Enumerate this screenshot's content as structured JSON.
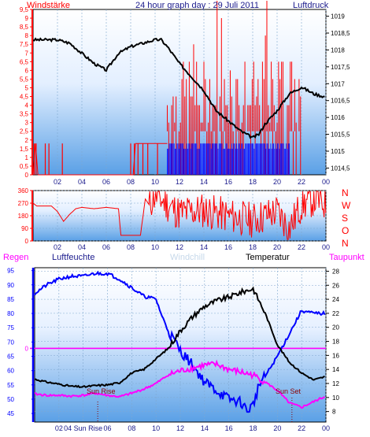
{
  "header": {
    "left_title": "Windstärke",
    "center_title": "24 hour graph day : 29 Juli 2011",
    "right_title": "Luftdruck"
  },
  "colors": {
    "wind_red": "#ff0000",
    "wind_blue": "#0000ff",
    "pressure_black": "#000000",
    "grid_bg_top": "#ffffff",
    "grid_bg_bottom": "#5aa0e6",
    "humidity_blue": "#0000ff",
    "dew_magenta": "#ff00ff",
    "axis_red": "#ff0000",
    "axis_blue": "#0000ff",
    "title_navy": "#1a1a8c"
  },
  "lower_header": {
    "rain": "Regen",
    "humidity": "Luftfeuchte",
    "windchill": "Windchill",
    "temperature": "Temperatur",
    "dewpoint": "Taupunkt"
  },
  "direction_labels": [
    "N",
    "W",
    "S",
    "O",
    "N"
  ],
  "annotations": {
    "sunrise": "Sun Rise",
    "sunset": "Sun Set",
    "sunrise_tick": "04 Sun Rise"
  },
  "chart_data": [
    {
      "type": "line",
      "name": "wind-pressure",
      "x_ticks": [
        "02",
        "04",
        "06",
        "08",
        "10",
        "12",
        "14",
        "16",
        "18",
        "20",
        "22",
        "00"
      ],
      "left_axis": {
        "ticks": [
          "0",
          "0,5",
          "1",
          "1,5",
          "2",
          "2,5",
          "3",
          "3,5",
          "4",
          "4,5",
          "5",
          "5,5",
          "6",
          "6,5",
          "7",
          "7,5",
          "8",
          "8,5",
          "9",
          "9,5"
        ],
        "range": [
          0,
          9.5
        ]
      },
      "right_axis": {
        "ticks": [
          "1014,5",
          "1015",
          "1015,5",
          "1016",
          "1016,5",
          "1017",
          "1017,5",
          "1018",
          "1018,5",
          "1019"
        ],
        "range": [
          1014.3,
          1019.2
        ]
      },
      "pressure": {
        "x": [
          0,
          1,
          2,
          3,
          4,
          5,
          6,
          7,
          8,
          9,
          10,
          10.5,
          11,
          12,
          13,
          14,
          15,
          16,
          17,
          17.5,
          18,
          18.5,
          19,
          20,
          21,
          22,
          22.5,
          23,
          24
        ],
        "y": [
          1018.3,
          1018.3,
          1018.3,
          1018.2,
          1017.9,
          1017.6,
          1017.4,
          1017.9,
          1018.1,
          1018.2,
          1018.3,
          1018.3,
          1018.1,
          1017.6,
          1017.2,
          1016.8,
          1016.2,
          1015.9,
          1015.6,
          1015.5,
          1015.4,
          1015.5,
          1015.8,
          1016.2,
          1016.7,
          1016.9,
          1016.8,
          1016.7,
          1016.6
        ]
      },
      "gust_range_hours": [
        11,
        22
      ],
      "wind_range_hours": [
        11,
        21
      ]
    },
    {
      "type": "line",
      "name": "wind-direction",
      "x_ticks": [
        "02",
        "04",
        "06",
        "08",
        "10",
        "12",
        "14",
        "16",
        "18",
        "20",
        "22",
        "00"
      ],
      "y_ticks": [
        "0",
        "90",
        "180",
        "270",
        "360"
      ],
      "ylim": [
        0,
        360
      ],
      "x": [
        0,
        0.3,
        1.5,
        2,
        2.5,
        3,
        3.5,
        4,
        5,
        6,
        7,
        7.2,
        8,
        8.8,
        9.2,
        9.5,
        10,
        11,
        12,
        14,
        16,
        18,
        20,
        21,
        22,
        23,
        24
      ],
      "y": [
        270,
        250,
        250,
        210,
        140,
        190,
        230,
        240,
        230,
        240,
        230,
        40,
        40,
        40,
        300,
        260,
        330,
        260,
        200,
        220,
        180,
        150,
        210,
        90,
        260,
        300,
        270
      ]
    },
    {
      "type": "line",
      "name": "climate",
      "x_ticks": [
        "02",
        "04",
        "06",
        "08",
        "10",
        "12",
        "14",
        "16",
        "18",
        "20",
        "22",
        "00"
      ],
      "humidity_axis": {
        "ticks": [
          "45",
          "50",
          "55",
          "60",
          "65",
          "70",
          "75",
          "80",
          "85",
          "90",
          "95"
        ],
        "range": [
          42,
          96
        ]
      },
      "temperature_axis": {
        "ticks": [
          "8",
          "10",
          "12",
          "14",
          "16",
          "18",
          "20",
          "22",
          "24",
          "26",
          "28"
        ],
        "range": [
          6.5,
          28.5
        ]
      },
      "rain_marker": "0",
      "series": [
        {
          "name": "Luftfeuchte",
          "x": [
            0,
            1,
            2,
            3,
            4,
            5,
            6,
            7,
            8,
            9,
            10,
            10.5,
            11,
            12,
            13,
            14,
            15,
            16,
            17,
            17.5,
            18,
            18.5,
            19,
            20,
            21,
            22,
            23,
            24
          ],
          "y": [
            87,
            90,
            92,
            93,
            93,
            94,
            94,
            92,
            89,
            86,
            85,
            79,
            74,
            67,
            62,
            56,
            53,
            50,
            49,
            46,
            48,
            55,
            58,
            65,
            73,
            81,
            80,
            80
          ]
        },
        {
          "name": "Temperatur",
          "x": [
            0,
            1,
            2,
            3,
            4,
            5,
            6,
            7,
            8,
            9,
            10,
            11,
            12,
            13,
            14,
            15,
            16,
            17,
            18,
            19,
            20,
            21,
            22,
            23,
            24
          ],
          "y": [
            12.6,
            12.2,
            11.9,
            11.6,
            11.5,
            11.7,
            11.8,
            12.1,
            13.5,
            14.0,
            15.5,
            17.0,
            19.5,
            21.5,
            23.0,
            23.8,
            24.3,
            25.0,
            25.5,
            22.0,
            17.5,
            15.0,
            13.5,
            12.5,
            13.0
          ]
        },
        {
          "name": "Taupunkt",
          "x": [
            0,
            1,
            2,
            3,
            4,
            5,
            6,
            7,
            8,
            9,
            10,
            11,
            12,
            13,
            14,
            15,
            16,
            17,
            18,
            19,
            20,
            21,
            22,
            23,
            24
          ],
          "y": [
            10.5,
            10.3,
            10.3,
            10.2,
            10.3,
            10.6,
            10.3,
            10.1,
            10.6,
            11.2,
            12.0,
            13.2,
            13.8,
            14.2,
            14.6,
            14.7,
            14.0,
            13.6,
            13.2,
            12.2,
            11.0,
            9.2,
            8.6,
            9.4,
            10.2
          ]
        }
      ]
    }
  ]
}
